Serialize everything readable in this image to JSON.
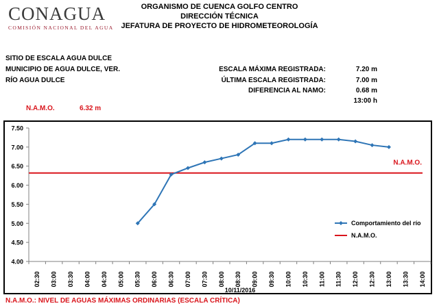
{
  "header": {
    "logo_word": "CONAGUA",
    "logo_sub": "COMISIÓN NACIONAL DEL AGUA",
    "line1": "ORGANISMO DE CUENCA GOLFO CENTRO",
    "line2": "DIRECCIÓN TÉCNICA",
    "line3": "JEFATURA DE PROYECTO DE HIDROMETEOROLOGÍA"
  },
  "site": {
    "name": "SITIO DE ESCALA AGUA DULCE",
    "municipality": "MUNICIPIO DE AGUA DULCE, VER.",
    "river": "RÍO AGUA DULCE"
  },
  "stats": {
    "max_label": "ESCALA MÁXIMA REGISTRADA:",
    "max_value": "7.20 m",
    "last_label": "ÚLTIMA ESCALA REGISTRADA:",
    "last_value": "7.00 m",
    "diff_label": "DIFERENCIA AL NAMO:",
    "diff_value": "0.68 m",
    "time_value": "13:00 h"
  },
  "namo": {
    "label": "N.A.M.O.",
    "value": "6.32 m"
  },
  "footer": "N.A.M.O.: NIVEL DE AGUAS MÁXIMAS ORDINARIAS (ESCALA CRÍTICA)",
  "colors": {
    "series": "#2e75b6",
    "namo": "#d9141b"
  },
  "chart_data": {
    "type": "line",
    "xlabel": "10/11/2016",
    "ylabel": "",
    "ylim": [
      4.0,
      7.5
    ],
    "yticks": [
      "4.00",
      "4.50",
      "5.00",
      "5.50",
      "6.00",
      "6.50",
      "7.00",
      "7.50"
    ],
    "categories": [
      "02:30",
      "03:00",
      "03:30",
      "04:00",
      "04:30",
      "05:00",
      "05:30",
      "06:00",
      "06:30",
      "07:00",
      "07:30",
      "08:00",
      "08:30",
      "09:00",
      "09:30",
      "10:00",
      "10:30",
      "11:00",
      "11:30",
      "12:00",
      "12:30",
      "13:00",
      "13:30",
      "14:00"
    ],
    "series": [
      {
        "name": "Comportamiento del río",
        "values": [
          null,
          null,
          null,
          null,
          null,
          null,
          5.0,
          5.5,
          6.28,
          6.45,
          6.6,
          6.7,
          6.8,
          7.1,
          7.1,
          7.2,
          7.2,
          7.2,
          7.2,
          7.15,
          7.05,
          7.0,
          null,
          null
        ]
      },
      {
        "name": "N.A.M.O.",
        "constant": 6.32
      }
    ],
    "namo_label": "N.A.M.O.",
    "grid": false,
    "legend": "right"
  }
}
